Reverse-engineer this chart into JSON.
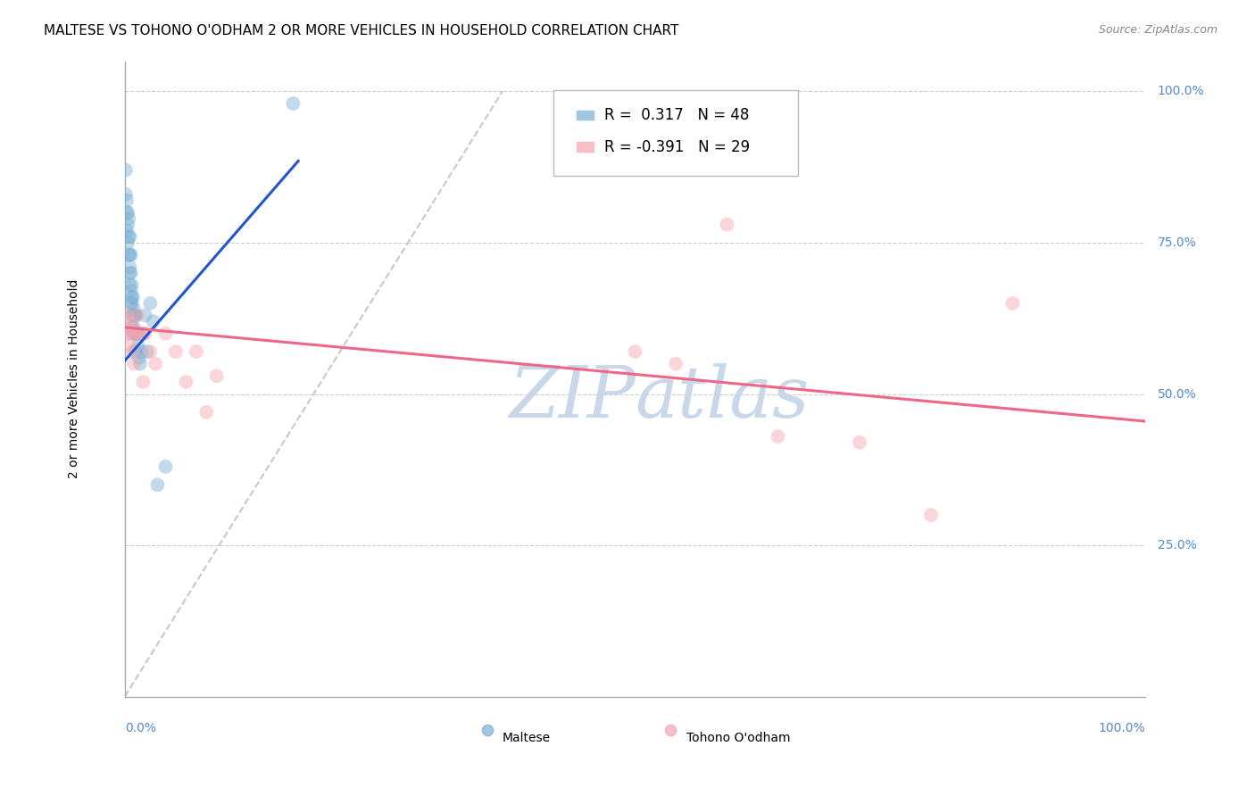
{
  "title": "MALTESE VS TOHONO O'ODHAM 2 OR MORE VEHICLES IN HOUSEHOLD CORRELATION CHART",
  "source": "Source: ZipAtlas.com",
  "ylabel": "2 or more Vehicles in Household",
  "xlim": [
    0.0,
    1.0
  ],
  "ylim": [
    0.0,
    1.05
  ],
  "yticks": [
    0.0,
    0.25,
    0.5,
    0.75,
    1.0
  ],
  "legend_maltese_R": "0.317",
  "legend_maltese_N": "48",
  "legend_tohono_R": "-0.391",
  "legend_tohono_N": "29",
  "maltese_color": "#7BAFD4",
  "tohono_color": "#F4A6B0",
  "trendline_maltese_color": "#2255CC",
  "trendline_tohono_color": "#EE6688",
  "background_color": "#FFFFFF",
  "grid_color": "#CCCCCC",
  "watermark_color": "#C8D8E8",
  "right_axis_color": "#5588CC",
  "maltese_points_x": [
    0.001,
    0.001,
    0.002,
    0.002,
    0.002,
    0.003,
    0.003,
    0.003,
    0.004,
    0.004,
    0.004,
    0.005,
    0.005,
    0.005,
    0.005,
    0.005,
    0.006,
    0.006,
    0.006,
    0.006,
    0.007,
    0.007,
    0.007,
    0.007,
    0.007,
    0.008,
    0.008,
    0.008,
    0.009,
    0.009,
    0.01,
    0.01,
    0.01,
    0.011,
    0.011,
    0.012,
    0.013,
    0.014,
    0.015,
    0.016,
    0.018,
    0.02,
    0.022,
    0.025,
    0.028,
    0.032,
    0.04,
    0.165
  ],
  "maltese_points_y": [
    0.87,
    0.83,
    0.8,
    0.77,
    0.82,
    0.75,
    0.78,
    0.8,
    0.73,
    0.76,
    0.79,
    0.7,
    0.73,
    0.76,
    0.71,
    0.68,
    0.67,
    0.7,
    0.73,
    0.65,
    0.65,
    0.68,
    0.61,
    0.63,
    0.66,
    0.63,
    0.66,
    0.6,
    0.61,
    0.64,
    0.6,
    0.63,
    0.57,
    0.6,
    0.63,
    0.6,
    0.58,
    0.56,
    0.55,
    0.57,
    0.6,
    0.63,
    0.57,
    0.65,
    0.62,
    0.35,
    0.38,
    0.98
  ],
  "tohono_points_x": [
    0.002,
    0.003,
    0.004,
    0.005,
    0.006,
    0.007,
    0.008,
    0.009,
    0.01,
    0.012,
    0.013,
    0.015,
    0.018,
    0.02,
    0.025,
    0.03,
    0.04,
    0.05,
    0.06,
    0.07,
    0.08,
    0.09,
    0.5,
    0.54,
    0.59,
    0.64,
    0.72,
    0.79,
    0.87
  ],
  "tohono_points_y": [
    0.63,
    0.6,
    0.62,
    0.6,
    0.58,
    0.61,
    0.57,
    0.55,
    0.6,
    0.63,
    0.6,
    0.6,
    0.52,
    0.6,
    0.57,
    0.55,
    0.6,
    0.57,
    0.52,
    0.57,
    0.47,
    0.53,
    0.57,
    0.55,
    0.78,
    0.43,
    0.42,
    0.3,
    0.65
  ],
  "maltese_trend_x0": 0.0,
  "maltese_trend_y0": 0.555,
  "maltese_trend_x1": 0.17,
  "maltese_trend_y1": 0.885,
  "maltese_trend_dash_x0": 0.0,
  "maltese_trend_dash_y0": 0.0,
  "maltese_trend_dash_x1": 0.37,
  "maltese_trend_dash_y1": 1.0,
  "tohono_trend_x0": 0.0,
  "tohono_trend_y0": 0.61,
  "tohono_trend_x1": 1.0,
  "tohono_trend_y1": 0.455,
  "marker_size": 130,
  "marker_alpha": 0.45,
  "title_fontsize": 11,
  "source_fontsize": 9,
  "legend_fontsize": 12,
  "axis_label_fontsize": 10
}
